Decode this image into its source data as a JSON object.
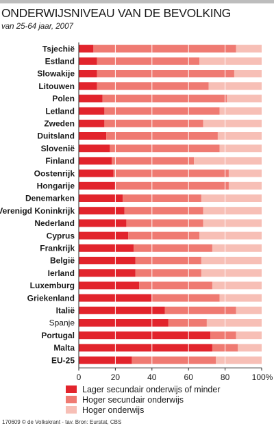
{
  "title": "ONDERWIJSNIVEAU VAN DE BEVOLKING",
  "subtitle": "van 25-64 jaar, 2007",
  "footer": "170609 © de Volkskrant - tav. Bron: Eurstat, CBS",
  "colors": {
    "low": "#e2242c",
    "mid": "#ef7a72",
    "high": "#f7bfb6",
    "grid": "#ffffff",
    "axis": "#222222"
  },
  "chart_data": {
    "type": "bar",
    "orientation": "horizontal",
    "stacked": true,
    "categories": [
      "Tsjechië",
      "Estland",
      "Slowakije",
      "Litouwen",
      "Polen",
      "Letland",
      "Zweden",
      "Duitsland",
      "Slovenië",
      "Finland",
      "Oostenrijk",
      "Hongarije",
      "Denemarken",
      "Verenigd Koninkrijk",
      "Nederland",
      "Cyprus",
      "Frankrijk",
      "België",
      "Ierland",
      "Luxemburg",
      "Griekenland",
      "Italië",
      "Spanje",
      "Portugal",
      "Malta",
      "EU-25"
    ],
    "bold_categories": [
      "Tsjechië",
      "Estland",
      "Slowakije",
      "Litouwen",
      "Polen",
      "Letland",
      "Zweden",
      "Duitsland",
      "Slovenië",
      "Finland",
      "Oostenrijk",
      "Hongarije",
      "Denemarken",
      "Verenigd Koninkrijk",
      "Nederland",
      "Cyprus",
      "Frankrijk",
      "België",
      "Ierland",
      "Luxemburg",
      "Griekenland",
      "Italië",
      "Portugal",
      "Malta",
      "EU-25"
    ],
    "series": [
      {
        "name": "Lager secundair onderwijs of minder",
        "values": [
          8,
          10,
          10,
          10,
          13,
          14,
          14,
          15,
          17,
          18,
          19,
          20,
          24,
          25,
          26,
          27,
          30,
          31,
          31,
          33,
          40,
          47,
          49,
          72,
          73,
          29
        ]
      },
      {
        "name": "Hoger secundair onderwijs",
        "values": [
          78,
          56,
          75,
          61,
          68,
          63,
          54,
          61,
          60,
          45,
          63,
          62,
          43,
          43,
          42,
          39,
          43,
          36,
          36,
          40,
          37,
          39,
          21,
          14,
          14,
          46
        ]
      },
      {
        "name": "Hoger onderwijs",
        "values": [
          14,
          34,
          15,
          29,
          19,
          23,
          32,
          24,
          23,
          37,
          18,
          18,
          33,
          32,
          32,
          34,
          27,
          33,
          33,
          27,
          23,
          14,
          30,
          14,
          13,
          25
        ]
      }
    ],
    "xlim": [
      0,
      100
    ],
    "xticks": [
      "0",
      "20",
      "40",
      "60",
      "80",
      "100%"
    ],
    "grid": true,
    "legend_position": "bottom"
  }
}
